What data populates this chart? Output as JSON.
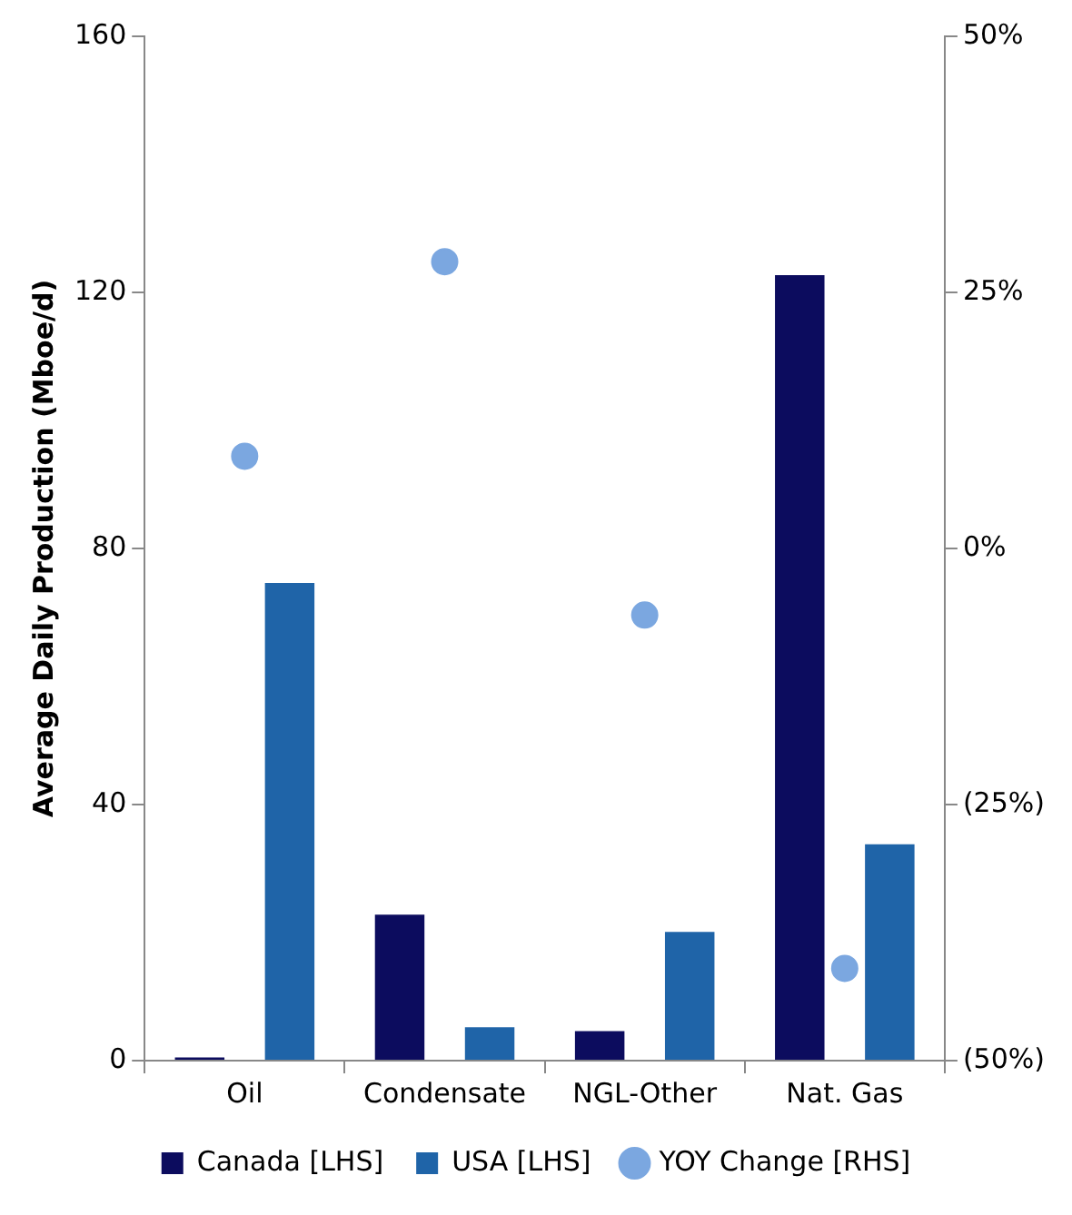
{
  "chart_data": {
    "type": "bar",
    "categories": [
      "Oil",
      "Condensate",
      "NGL-Other",
      "Nat. Gas"
    ],
    "ylabel": "Average Daily Production (Mboe/d)",
    "series": [
      {
        "name": "Canada [LHS]",
        "color": "#0c0c5e",
        "values": [
          0.5,
          22.8,
          4.6,
          122.7
        ]
      },
      {
        "name": "USA [LHS]",
        "color": "#1f64a8",
        "values": [
          74.6,
          5.2,
          20.1,
          33.8
        ]
      },
      {
        "name": "YOY Change [RHS]",
        "type": "scatter",
        "axis": "y2",
        "color": "#7ba7e0",
        "values": [
          9,
          28,
          -6.5,
          -41
        ]
      }
    ],
    "ylim": [
      0,
      160
    ],
    "yticks": [
      0,
      40,
      80,
      120,
      160
    ],
    "y2lim": [
      -50,
      50
    ],
    "y2ticks": [
      {
        "value": -50,
        "label": "(50%)"
      },
      {
        "value": -25,
        "label": "(25%)"
      },
      {
        "value": 0,
        "label": "0%"
      },
      {
        "value": 25,
        "label": "25%"
      },
      {
        "value": 50,
        "label": "50%"
      }
    ],
    "grid": false,
    "legend": "bottom",
    "marker": "circle"
  }
}
